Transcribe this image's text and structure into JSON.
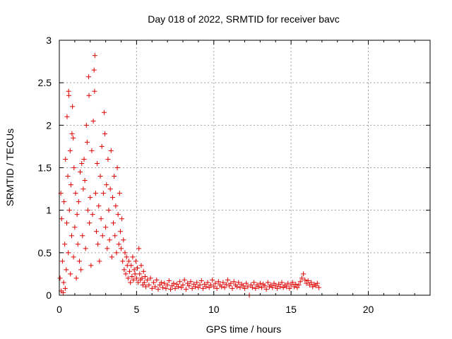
{
  "chart_data": {
    "type": "scatter",
    "title": "Day 018 of 2022, SRMTID for receiver bavc",
    "xlabel": "GPS time / hours",
    "ylabel": "SRMTID / TECUs",
    "xlim": [
      0,
      24
    ],
    "ylim": [
      0,
      3
    ],
    "xticks": [
      0,
      5,
      10,
      15,
      20
    ],
    "yticks": [
      0,
      0.5,
      1,
      1.5,
      2,
      2.5,
      3
    ],
    "xtick_labels": [
      "0",
      "5",
      "10",
      "15",
      "20"
    ],
    "ytick_labels": [
      "0",
      "0.5",
      "1",
      "1.5",
      "2",
      "2.5",
      "3"
    ],
    "grid": true,
    "marker": "+",
    "series": [
      {
        "name": "SRMTID",
        "color": "#e00000",
        "points": [
          [
            0.05,
            0.2
          ],
          [
            0.1,
            1.2
          ],
          [
            0.12,
            0.05
          ],
          [
            0.15,
            0.9
          ],
          [
            0.2,
            0.4
          ],
          [
            0.25,
            0.03
          ],
          [
            0.28,
            0.15
          ],
          [
            0.3,
            1.1
          ],
          [
            0.35,
            0.6
          ],
          [
            0.38,
            0.08
          ],
          [
            0.4,
            1.6
          ],
          [
            0.45,
            0.3
          ],
          [
            0.48,
            0.85
          ],
          [
            0.5,
            2.1
          ],
          [
            0.55,
            1.4
          ],
          [
            0.58,
            0.5
          ],
          [
            0.6,
            2.4
          ],
          [
            0.62,
            2.35
          ],
          [
            0.65,
            1.0
          ],
          [
            0.7,
            1.7
          ],
          [
            0.72,
            0.25
          ],
          [
            0.75,
            1.3
          ],
          [
            0.8,
            0.7
          ],
          [
            0.82,
            1.9
          ],
          [
            0.85,
            2.22
          ],
          [
            0.9,
            1.85
          ],
          [
            0.92,
            0.45
          ],
          [
            0.95,
            1.5
          ],
          [
            1.0,
            0.8
          ],
          [
            1.05,
            1.2
          ],
          [
            1.1,
            0.2
          ],
          [
            1.15,
            0.95
          ],
          [
            1.2,
            0.6
          ],
          [
            1.25,
            1.1
          ],
          [
            1.3,
            0.4
          ],
          [
            1.35,
            1.45
          ],
          [
            1.4,
            0.3
          ],
          [
            1.45,
            1.55
          ],
          [
            1.5,
            0.7
          ],
          [
            1.55,
            1.25
          ],
          [
            1.6,
            1.6
          ],
          [
            1.65,
            1.35
          ],
          [
            1.7,
            0.55
          ],
          [
            1.75,
            2.0
          ],
          [
            1.8,
            1.8
          ],
          [
            1.85,
            1.0
          ],
          [
            1.9,
            2.57
          ],
          [
            1.92,
            2.35
          ],
          [
            1.95,
            0.85
          ],
          [
            2.0,
            1.15
          ],
          [
            2.05,
            0.35
          ],
          [
            2.1,
            1.7
          ],
          [
            2.15,
            0.95
          ],
          [
            2.2,
            2.05
          ],
          [
            2.25,
            2.65
          ],
          [
            2.28,
            2.4
          ],
          [
            2.3,
            2.82
          ],
          [
            2.35,
            1.2
          ],
          [
            2.4,
            0.75
          ],
          [
            2.45,
            1.55
          ],
          [
            2.5,
            0.6
          ],
          [
            2.55,
            1.05
          ],
          [
            2.6,
            0.4
          ],
          [
            2.65,
            1.4
          ],
          [
            2.7,
            0.9
          ],
          [
            2.75,
            1.75
          ],
          [
            2.8,
            0.7
          ],
          [
            2.85,
            1.2
          ],
          [
            2.9,
            2.15
          ],
          [
            2.95,
            1.9
          ],
          [
            3.0,
            0.8
          ],
          [
            3.05,
            1.3
          ],
          [
            3.1,
            0.55
          ],
          [
            3.15,
            1.6
          ],
          [
            3.2,
            1.0
          ],
          [
            3.25,
            0.65
          ],
          [
            3.3,
            1.25
          ],
          [
            3.35,
            1.7
          ],
          [
            3.4,
            0.45
          ],
          [
            3.45,
            1.15
          ],
          [
            3.5,
            0.85
          ],
          [
            3.55,
            1.4
          ],
          [
            3.6,
            0.7
          ],
          [
            3.65,
            1.05
          ],
          [
            3.7,
            0.5
          ],
          [
            3.75,
            1.5
          ],
          [
            3.8,
            0.95
          ],
          [
            3.85,
            0.6
          ],
          [
            3.9,
            1.2
          ],
          [
            3.95,
            0.75
          ],
          [
            4.0,
            0.55
          ],
          [
            4.05,
            0.9
          ],
          [
            4.1,
            0.4
          ],
          [
            4.15,
            0.65
          ],
          [
            4.2,
            0.3
          ],
          [
            4.25,
            0.5
          ],
          [
            4.3,
            0.25
          ],
          [
            4.35,
            0.45
          ],
          [
            4.4,
            0.35
          ],
          [
            4.45,
            0.2
          ],
          [
            4.5,
            0.4
          ],
          [
            4.55,
            0.28
          ],
          [
            4.6,
            0.15
          ],
          [
            4.65,
            0.35
          ],
          [
            4.7,
            0.22
          ],
          [
            4.75,
            0.45
          ],
          [
            4.8,
            0.18
          ],
          [
            4.85,
            0.3
          ],
          [
            4.9,
            0.25
          ],
          [
            4.95,
            0.4
          ],
          [
            5.0,
            0.2
          ],
          [
            5.05,
            0.32
          ],
          [
            5.1,
            0.15
          ],
          [
            5.15,
            0.55
          ],
          [
            5.2,
            0.25
          ],
          [
            5.25,
            0.18
          ],
          [
            5.3,
            0.35
          ],
          [
            5.35,
            0.2
          ],
          [
            5.4,
            0.12
          ],
          [
            5.45,
            0.28
          ],
          [
            5.5,
            0.15
          ],
          [
            5.55,
            0.22
          ],
          [
            5.6,
            0.1
          ],
          [
            5.7,
            0.18
          ],
          [
            5.8,
            0.12
          ],
          [
            5.9,
            0.2
          ],
          [
            6.0,
            0.08
          ],
          [
            6.1,
            0.15
          ],
          [
            6.2,
            0.1
          ],
          [
            6.3,
            0.18
          ],
          [
            6.4,
            0.07
          ],
          [
            6.5,
            0.12
          ],
          [
            6.6,
            0.15
          ],
          [
            6.7,
            0.09
          ],
          [
            6.8,
            0.14
          ],
          [
            6.9,
            0.08
          ],
          [
            7.0,
            0.12
          ],
          [
            7.1,
            0.17
          ],
          [
            7.2,
            0.07
          ],
          [
            7.3,
            0.11
          ],
          [
            7.4,
            0.14
          ],
          [
            7.5,
            0.08
          ],
          [
            7.6,
            0.13
          ],
          [
            7.7,
            0.1
          ],
          [
            7.8,
            0.16
          ],
          [
            7.9,
            0.09
          ],
          [
            8.0,
            0.12
          ],
          [
            8.1,
            0.18
          ],
          [
            8.2,
            0.07
          ],
          [
            8.3,
            0.14
          ],
          [
            8.4,
            0.11
          ],
          [
            8.5,
            0.16
          ],
          [
            8.6,
            0.08
          ],
          [
            8.7,
            0.13
          ],
          [
            8.8,
            0.1
          ],
          [
            8.9,
            0.15
          ],
          [
            9.0,
            0.09
          ],
          [
            9.1,
            0.12
          ],
          [
            9.2,
            0.17
          ],
          [
            9.3,
            0.08
          ],
          [
            9.4,
            0.13
          ],
          [
            9.5,
            0.1
          ],
          [
            9.6,
            0.15
          ],
          [
            9.7,
            0.09
          ],
          [
            9.8,
            0.12
          ],
          [
            9.9,
            0.18
          ],
          [
            10.0,
            0.1
          ],
          [
            10.1,
            0.14
          ],
          [
            10.2,
            0.08
          ],
          [
            10.3,
            0.16
          ],
          [
            10.4,
            0.12
          ],
          [
            10.5,
            0.1
          ],
          [
            10.6,
            0.15
          ],
          [
            10.7,
            0.09
          ],
          [
            10.8,
            0.13
          ],
          [
            10.9,
            0.18
          ],
          [
            11.0,
            0.11
          ],
          [
            11.1,
            0.14
          ],
          [
            11.2,
            0.08
          ],
          [
            11.3,
            0.16
          ],
          [
            11.4,
            0.12
          ],
          [
            11.5,
            0.1
          ],
          [
            11.6,
            0.15
          ],
          [
            11.7,
            0.09
          ],
          [
            11.8,
            0.13
          ],
          [
            11.9,
            0.11
          ],
          [
            12.0,
            0.08
          ],
          [
            12.1,
            0.14
          ],
          [
            12.2,
            0.1
          ],
          [
            12.3,
            0.0
          ],
          [
            12.4,
            0.12
          ],
          [
            12.5,
            0.09
          ],
          [
            12.6,
            0.15
          ],
          [
            12.7,
            0.08
          ],
          [
            12.8,
            0.12
          ],
          [
            12.9,
            0.1
          ],
          [
            13.0,
            0.14
          ],
          [
            13.1,
            0.09
          ],
          [
            13.2,
            0.13
          ],
          [
            13.3,
            0.11
          ],
          [
            13.4,
            0.07
          ],
          [
            13.5,
            0.15
          ],
          [
            13.6,
            0.1
          ],
          [
            13.7,
            0.12
          ],
          [
            13.8,
            0.09
          ],
          [
            13.9,
            0.14
          ],
          [
            14.0,
            0.11
          ],
          [
            14.1,
            0.08
          ],
          [
            14.2,
            0.13
          ],
          [
            14.3,
            0.1
          ],
          [
            14.4,
            0.15
          ],
          [
            14.5,
            0.09
          ],
          [
            14.6,
            0.12
          ],
          [
            14.7,
            0.1
          ],
          [
            14.8,
            0.14
          ],
          [
            14.9,
            0.08
          ],
          [
            15.0,
            0.12
          ],
          [
            15.1,
            0.15
          ],
          [
            15.2,
            0.1
          ],
          [
            15.3,
            0.13
          ],
          [
            15.4,
            0.09
          ],
          [
            15.5,
            0.12
          ],
          [
            15.6,
            0.16
          ],
          [
            15.7,
            0.2
          ],
          [
            15.8,
            0.25
          ],
          [
            15.9,
            0.18
          ],
          [
            16.0,
            0.14
          ],
          [
            16.1,
            0.17
          ],
          [
            16.2,
            0.12
          ],
          [
            16.3,
            0.15
          ],
          [
            16.4,
            0.1
          ],
          [
            16.5,
            0.13
          ],
          [
            16.6,
            0.11
          ],
          [
            16.7,
            0.14
          ],
          [
            16.8,
            0.09
          ]
        ]
      }
    ]
  }
}
